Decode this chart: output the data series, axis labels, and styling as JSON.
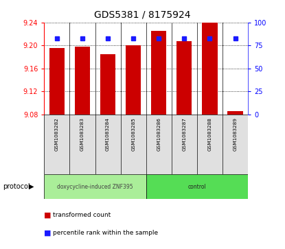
{
  "title": "GDS5381 / 8175924",
  "samples": [
    "GSM1083282",
    "GSM1083283",
    "GSM1083284",
    "GSM1083285",
    "GSM1083286",
    "GSM1083287",
    "GSM1083288",
    "GSM1083289"
  ],
  "red_values": [
    9.195,
    9.198,
    9.185,
    9.2,
    9.225,
    9.207,
    9.24,
    9.086
  ],
  "blue_values": [
    83,
    83,
    83,
    83,
    83,
    83,
    83,
    83
  ],
  "ymin": 9.08,
  "ymax": 9.24,
  "y_ticks": [
    9.08,
    9.12,
    9.16,
    9.2,
    9.24
  ],
  "y2_ticks": [
    0,
    25,
    50,
    75,
    100
  ],
  "bar_color": "#cc0000",
  "blue_color": "#1a1aff",
  "group1_label": "doxycycline-induced ZNF395",
  "group1_color": "#aaee99",
  "group2_label": "control",
  "group2_color": "#55dd55",
  "protocol_label": "protocol",
  "legend_red": "transformed count",
  "legend_blue": "percentile rank within the sample",
  "title_fontsize": 10
}
